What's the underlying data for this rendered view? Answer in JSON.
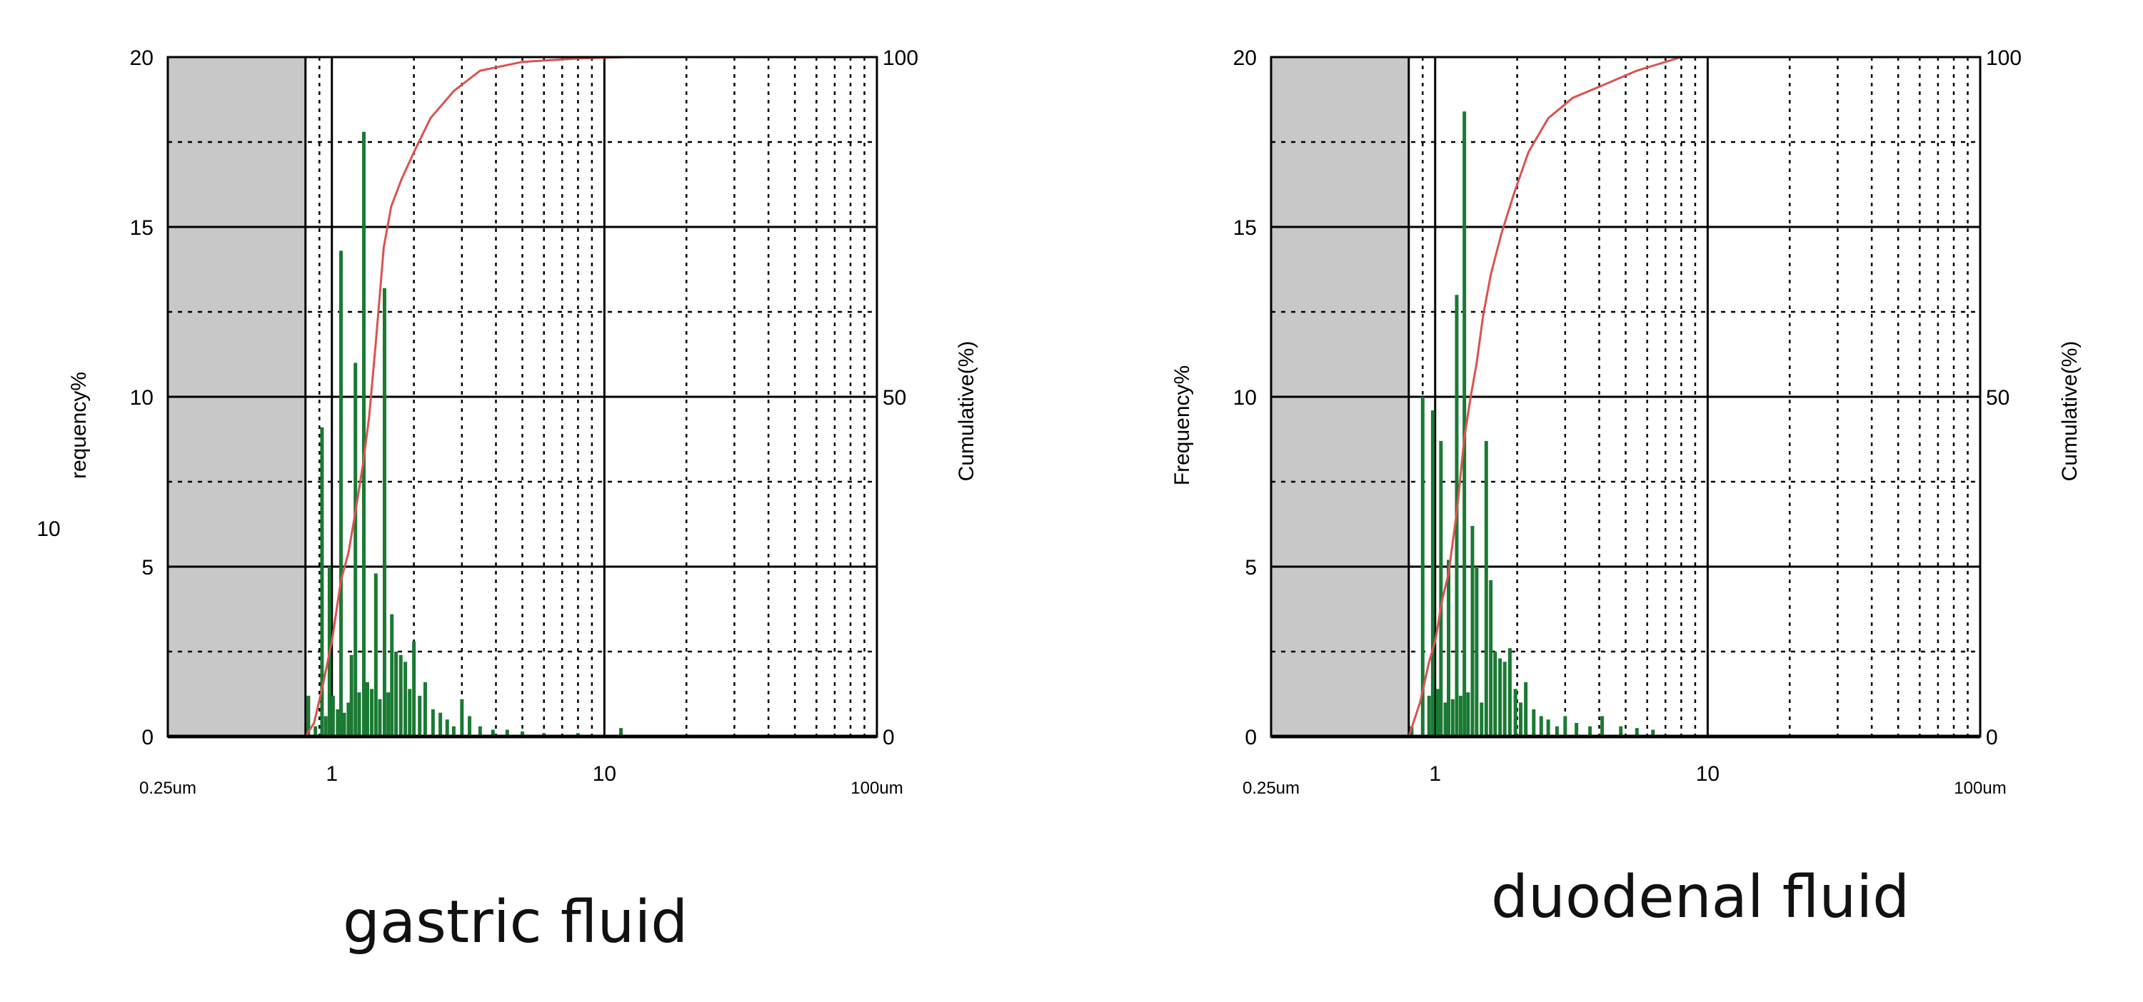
{
  "chart_data": [
    {
      "type": "bar",
      "caption": "gastric fluid",
      "colors": {
        "bars": "#1a7a33",
        "cumulative": "#d9534f",
        "shaded": "#c8c8c8",
        "grid": "#000000"
      },
      "x_scale": "log",
      "xlim": [
        0.25,
        100
      ],
      "x_tick_labels": [
        {
          "value": 0.25,
          "label": "0.25um",
          "small": true
        },
        {
          "value": 1,
          "label": "1"
        },
        {
          "value": 10,
          "label": "10"
        },
        {
          "value": 100,
          "label": "100um",
          "small": true
        }
      ],
      "ylim": [
        0,
        20
      ],
      "y_ticks": [
        "0",
        "5",
        "10",
        "15",
        "20"
      ],
      "ylabel": "requency%",
      "ylabel_prefix": "10",
      "y2lim": [
        0,
        100
      ],
      "y2_ticks": [
        "0",
        "50",
        "100"
      ],
      "y2label": "Cumulative(%)",
      "shaded_region": [
        0.25,
        0.8
      ],
      "grid": true,
      "bars": [
        {
          "x": 0.82,
          "y": 1.2
        },
        {
          "x": 0.87,
          "y": 0.3
        },
        {
          "x": 0.92,
          "y": 9.1
        },
        {
          "x": 0.95,
          "y": 0.6
        },
        {
          "x": 0.98,
          "y": 5.0
        },
        {
          "x": 1.01,
          "y": 1.2
        },
        {
          "x": 1.05,
          "y": 0.8
        },
        {
          "x": 1.08,
          "y": 14.3
        },
        {
          "x": 1.11,
          "y": 0.7
        },
        {
          "x": 1.15,
          "y": 1.0
        },
        {
          "x": 1.18,
          "y": 2.4
        },
        {
          "x": 1.22,
          "y": 11.0
        },
        {
          "x": 1.26,
          "y": 1.3
        },
        {
          "x": 1.31,
          "y": 17.8
        },
        {
          "x": 1.35,
          "y": 1.6
        },
        {
          "x": 1.4,
          "y": 1.4
        },
        {
          "x": 1.45,
          "y": 4.8
        },
        {
          "x": 1.5,
          "y": 1.1
        },
        {
          "x": 1.56,
          "y": 13.2
        },
        {
          "x": 1.61,
          "y": 1.3
        },
        {
          "x": 1.66,
          "y": 3.6
        },
        {
          "x": 1.72,
          "y": 2.5
        },
        {
          "x": 1.79,
          "y": 2.4
        },
        {
          "x": 1.86,
          "y": 2.2
        },
        {
          "x": 1.93,
          "y": 1.4
        },
        {
          "x": 2.0,
          "y": 2.8
        },
        {
          "x": 2.1,
          "y": 1.2
        },
        {
          "x": 2.2,
          "y": 1.6
        },
        {
          "x": 2.35,
          "y": 0.8
        },
        {
          "x": 2.5,
          "y": 0.7
        },
        {
          "x": 2.65,
          "y": 0.5
        },
        {
          "x": 2.8,
          "y": 0.3
        },
        {
          "x": 3.0,
          "y": 1.1
        },
        {
          "x": 3.2,
          "y": 0.6
        },
        {
          "x": 3.5,
          "y": 0.3
        },
        {
          "x": 3.9,
          "y": 0.2
        },
        {
          "x": 4.4,
          "y": 0.2
        },
        {
          "x": 5.0,
          "y": 0.15
        },
        {
          "x": 6.0,
          "y": 0.1
        },
        {
          "x": 8.0,
          "y": 0.1
        },
        {
          "x": 11.5,
          "y": 0.25
        }
      ],
      "cumulative": [
        {
          "x": 0.8,
          "y": 0
        },
        {
          "x": 0.86,
          "y": 2
        },
        {
          "x": 0.92,
          "y": 7
        },
        {
          "x": 1.0,
          "y": 14
        },
        {
          "x": 1.08,
          "y": 23
        },
        {
          "x": 1.15,
          "y": 27
        },
        {
          "x": 1.22,
          "y": 33
        },
        {
          "x": 1.3,
          "y": 40
        },
        {
          "x": 1.37,
          "y": 47
        },
        {
          "x": 1.45,
          "y": 58
        },
        {
          "x": 1.55,
          "y": 72
        },
        {
          "x": 1.65,
          "y": 78
        },
        {
          "x": 1.8,
          "y": 82
        },
        {
          "x": 2.0,
          "y": 86
        },
        {
          "x": 2.3,
          "y": 91
        },
        {
          "x": 2.8,
          "y": 95
        },
        {
          "x": 3.5,
          "y": 98
        },
        {
          "x": 5.0,
          "y": 99.3
        },
        {
          "x": 8.0,
          "y": 99.8
        },
        {
          "x": 12.0,
          "y": 100
        }
      ]
    },
    {
      "type": "bar",
      "caption": "duodenal fluid",
      "colors": {
        "bars": "#1a7a33",
        "cumulative": "#d9534f",
        "shaded": "#c8c8c8",
        "grid": "#000000"
      },
      "x_scale": "log",
      "xlim": [
        0.25,
        100
      ],
      "x_tick_labels": [
        {
          "value": 0.25,
          "label": "0.25um",
          "small": true
        },
        {
          "value": 1,
          "label": "1"
        },
        {
          "value": 10,
          "label": "10"
        },
        {
          "value": 100,
          "label": "100um",
          "small": true
        }
      ],
      "ylim": [
        0,
        20
      ],
      "y_ticks": [
        "0",
        "5",
        "10",
        "15",
        "20"
      ],
      "ylabel": "Frequency%",
      "ylabel_prefix": "",
      "y2lim": [
        0,
        100
      ],
      "y2_ticks": [
        "0",
        "50",
        "100"
      ],
      "y2label": "Cumulative(%)",
      "shaded_region": [
        0.25,
        0.8
      ],
      "grid": true,
      "bars": [
        {
          "x": 0.82,
          "y": 0.3
        },
        {
          "x": 0.9,
          "y": 10.0
        },
        {
          "x": 0.95,
          "y": 1.2
        },
        {
          "x": 0.98,
          "y": 9.6
        },
        {
          "x": 1.02,
          "y": 1.4
        },
        {
          "x": 1.05,
          "y": 8.7
        },
        {
          "x": 1.09,
          "y": 1.0
        },
        {
          "x": 1.12,
          "y": 5.2
        },
        {
          "x": 1.16,
          "y": 1.1
        },
        {
          "x": 1.2,
          "y": 13.0
        },
        {
          "x": 1.24,
          "y": 1.2
        },
        {
          "x": 1.28,
          "y": 18.4
        },
        {
          "x": 1.32,
          "y": 1.3
        },
        {
          "x": 1.37,
          "y": 6.2
        },
        {
          "x": 1.42,
          "y": 5.0
        },
        {
          "x": 1.48,
          "y": 1.0
        },
        {
          "x": 1.54,
          "y": 8.7
        },
        {
          "x": 1.6,
          "y": 4.6
        },
        {
          "x": 1.66,
          "y": 2.5
        },
        {
          "x": 1.73,
          "y": 2.3
        },
        {
          "x": 1.8,
          "y": 2.2
        },
        {
          "x": 1.88,
          "y": 2.6
        },
        {
          "x": 1.97,
          "y": 1.4
        },
        {
          "x": 2.06,
          "y": 1.0
        },
        {
          "x": 2.15,
          "y": 1.6
        },
        {
          "x": 2.3,
          "y": 0.8
        },
        {
          "x": 2.45,
          "y": 0.6
        },
        {
          "x": 2.6,
          "y": 0.5
        },
        {
          "x": 2.8,
          "y": 0.3
        },
        {
          "x": 3.0,
          "y": 0.6
        },
        {
          "x": 3.3,
          "y": 0.4
        },
        {
          "x": 3.7,
          "y": 0.3
        },
        {
          "x": 4.1,
          "y": 0.6
        },
        {
          "x": 4.8,
          "y": 0.3
        },
        {
          "x": 5.5,
          "y": 0.25
        },
        {
          "x": 6.3,
          "y": 0.2
        }
      ],
      "cumulative": [
        {
          "x": 0.8,
          "y": 0
        },
        {
          "x": 0.88,
          "y": 5
        },
        {
          "x": 0.95,
          "y": 11
        },
        {
          "x": 1.0,
          "y": 14
        },
        {
          "x": 1.06,
          "y": 20
        },
        {
          "x": 1.12,
          "y": 24
        },
        {
          "x": 1.2,
          "y": 33
        },
        {
          "x": 1.28,
          "y": 44
        },
        {
          "x": 1.35,
          "y": 50
        },
        {
          "x": 1.42,
          "y": 55
        },
        {
          "x": 1.5,
          "y": 62
        },
        {
          "x": 1.6,
          "y": 68
        },
        {
          "x": 1.75,
          "y": 74
        },
        {
          "x": 1.95,
          "y": 80
        },
        {
          "x": 2.2,
          "y": 86
        },
        {
          "x": 2.6,
          "y": 91
        },
        {
          "x": 3.2,
          "y": 94
        },
        {
          "x": 4.2,
          "y": 96
        },
        {
          "x": 5.5,
          "y": 98
        },
        {
          "x": 8.0,
          "y": 100
        }
      ]
    }
  ]
}
